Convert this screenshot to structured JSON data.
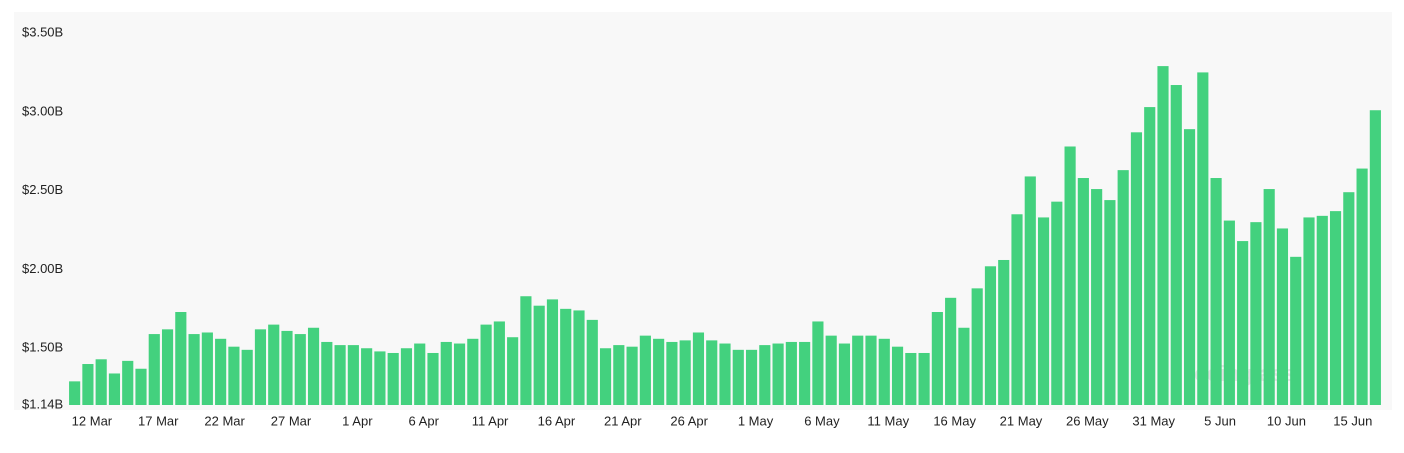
{
  "chart_data": {
    "type": "bar",
    "categories": [
      null,
      "12 Mar",
      null,
      null,
      null,
      null,
      "17 Mar",
      null,
      null,
      null,
      null,
      "22 Mar",
      null,
      null,
      null,
      null,
      "27 Mar",
      null,
      null,
      null,
      null,
      "1 Apr",
      null,
      null,
      null,
      null,
      "6 Apr",
      null,
      null,
      null,
      null,
      "11 Apr",
      null,
      null,
      null,
      null,
      "16 Apr",
      null,
      null,
      null,
      null,
      "21 Apr",
      null,
      null,
      null,
      null,
      "26 Apr",
      null,
      null,
      null,
      null,
      "1 May",
      null,
      null,
      null,
      null,
      "6 May",
      null,
      null,
      null,
      null,
      "11 May",
      null,
      null,
      null,
      null,
      "16 May",
      null,
      null,
      null,
      null,
      "21 May",
      null,
      null,
      null,
      null,
      "26 May",
      null,
      null,
      null,
      null,
      "31 May",
      null,
      null,
      null,
      null,
      "5 Jun",
      null,
      null,
      null,
      null,
      "10 Jun",
      null,
      null,
      null,
      null,
      "15 Jun",
      null,
      null
    ],
    "values": [
      1.29,
      1.4,
      1.43,
      1.34,
      1.42,
      1.37,
      1.59,
      1.62,
      1.73,
      1.59,
      1.6,
      1.56,
      1.51,
      1.49,
      1.62,
      1.65,
      1.61,
      1.59,
      1.63,
      1.54,
      1.52,
      1.52,
      1.5,
      1.48,
      1.47,
      1.5,
      1.53,
      1.47,
      1.54,
      1.53,
      1.56,
      1.65,
      1.67,
      1.57,
      1.83,
      1.77,
      1.81,
      1.75,
      1.74,
      1.68,
      1.5,
      1.52,
      1.51,
      1.58,
      1.56,
      1.54,
      1.55,
      1.6,
      1.55,
      1.53,
      1.49,
      1.49,
      1.52,
      1.53,
      1.54,
      1.54,
      1.67,
      1.58,
      1.53,
      1.58,
      1.58,
      1.56,
      1.51,
      1.47,
      1.47,
      1.73,
      1.82,
      1.63,
      1.88,
      2.02,
      2.06,
      2.35,
      2.59,
      2.33,
      2.43,
      2.78,
      2.58,
      2.51,
      2.44,
      2.63,
      2.87,
      3.03,
      3.29,
      3.17,
      2.89,
      3.25,
      2.58,
      2.31,
      2.18,
      2.3,
      2.51,
      2.26,
      2.08,
      2.33,
      2.34,
      2.37,
      2.49,
      2.64,
      3.01
    ],
    "color": "#43d17e",
    "ylim": [
      1.14,
      3.5
    ],
    "yticks": [
      {
        "value": 1.14,
        "label": "$1.14B"
      },
      {
        "value": 1.5,
        "label": "$1.50B"
      },
      {
        "value": 2.0,
        "label": "$2.00B"
      },
      {
        "value": 2.5,
        "label": "$2.50B"
      },
      {
        "value": 3.0,
        "label": "$3.00B"
      },
      {
        "value": 3.5,
        "label": "$3.50B"
      }
    ],
    "grid": false,
    "watermark": "coinglass"
  }
}
